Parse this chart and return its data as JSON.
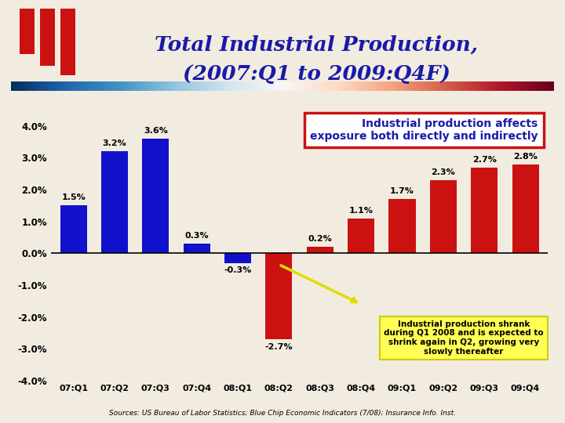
{
  "categories": [
    "07:Q1",
    "07:Q2",
    "07:Q3",
    "07:Q4",
    "08:Q1",
    "08:Q2",
    "08:Q3",
    "08:Q4",
    "09:Q1",
    "09:Q2",
    "09:Q3",
    "09:Q4"
  ],
  "values": [
    1.5,
    3.2,
    3.6,
    0.3,
    -0.3,
    -2.7,
    0.2,
    1.1,
    1.7,
    2.3,
    2.7,
    2.8
  ],
  "blue_indices": [
    0,
    1,
    2,
    3,
    4
  ],
  "red_indices": [
    5,
    6,
    7,
    8,
    9,
    10,
    11
  ],
  "blue_color": "#1111cc",
  "red_color": "#cc1111",
  "bg_color": "#f2ece0",
  "title_line1": "Total Industrial Production,",
  "title_line2": "(2007:Q1 to 2009:Q4F)",
  "title_color": "#1a1aaa",
  "annotation_box_text": "Industrial production affects\nexposure both directly and indirectly",
  "annotation_yellow_text": "Industrial production shrank\nduring Q1 2008 and is expected to\nshrink again in Q2, growing very\nslowly thereafter",
  "source_text": "Sources: US Bureau of Labor Statistics; Blue Chip Economic Indicators (7/08); Insurance Info. Inst.",
  "ylim": [
    -4.0,
    4.5
  ],
  "yticks": [
    -4.0,
    -3.0,
    -2.0,
    -1.0,
    0.0,
    1.0,
    2.0,
    3.0,
    4.0
  ],
  "value_labels": [
    "1.5%",
    "3.2%",
    "3.6%",
    "0.3%",
    "-0.3%",
    "-2.7%",
    "0.2%",
    "1.1%",
    "1.7%",
    "2.3%",
    "2.7%",
    "2.8%"
  ]
}
